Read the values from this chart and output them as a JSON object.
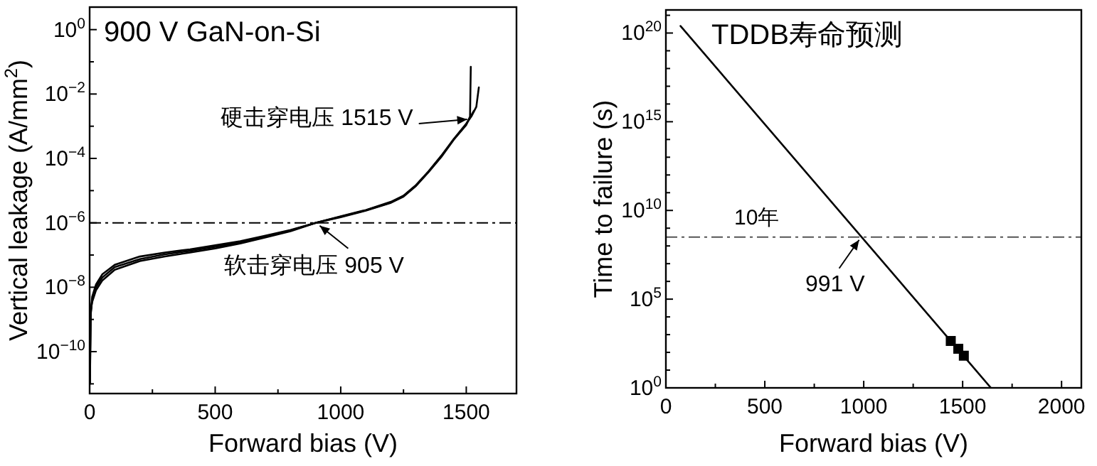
{
  "chart_data": [
    {
      "type": "line",
      "title": "900 V GaN-on-Si",
      "xlabel": "Forward bias (V)",
      "ylabel": "Vertical leakage (A/mm$^{2}$)",
      "log": "y",
      "xlim": [
        0,
        1700
      ],
      "xticks": [
        0,
        500,
        1000,
        1500
      ],
      "ylim": [
        5e-12,
        5
      ],
      "yticks": [
        {
          "value": 1,
          "label": "10$^{0}$"
        },
        {
          "value": 0.1,
          "label": null
        },
        {
          "value": 0.01,
          "label": "10$^{−2}$"
        },
        {
          "value": 0.001,
          "label": null
        },
        {
          "value": 0.0001,
          "label": "10$^{−4}$"
        },
        {
          "value": 1e-05,
          "label": null
        },
        {
          "value": 1e-06,
          "label": "10$^{−6}$"
        },
        {
          "value": 1e-07,
          "label": null
        },
        {
          "value": 1e-08,
          "label": "10$^{−8}$"
        },
        {
          "value": 1e-09,
          "label": null
        },
        {
          "value": 1e-10,
          "label": "10$^{−10}$"
        },
        {
          "value": 1e-11,
          "label": null
        }
      ],
      "line_style": "solid",
      "series": [
        {
          "color": "#000000",
          "x": [
            1,
            3,
            10,
            25,
            50,
            100,
            200,
            300,
            400,
            500,
            600,
            700,
            800,
            900,
            1000,
            1100,
            1200,
            1250,
            1300,
            1350,
            1400,
            1450,
            1500,
            1520,
            1540,
            1550
          ],
          "values": [
            1e-11,
            1e-09,
            5e-09,
            1.2e-08,
            2.5e-08,
            5e-08,
            9e-08,
            1.2e-07,
            1.5e-07,
            2e-07,
            2.7e-07,
            4e-07,
            6e-07,
            1e-06,
            1.6e-06,
            2.5e-06,
            4.5e-06,
            7e-06,
            1.5e-05,
            4e-05,
            0.00012,
            0.0004,
            0.0012,
            0.002,
            0.004,
            0.016
          ]
        },
        {
          "color": "#000000",
          "x": [
            1,
            5,
            10,
            25,
            50,
            100,
            200,
            300,
            400,
            500,
            600,
            700,
            800,
            900,
            1000,
            1100,
            1200,
            1250,
            1300,
            1350,
            1400,
            1450,
            1500,
            1515,
            1518
          ],
          "values": [
            1e-11,
            2e-09,
            3.5e-09,
            8e-09,
            1.6e-08,
            3.5e-08,
            6.5e-08,
            9e-08,
            1.2e-07,
            1.6e-07,
            2.3e-07,
            3.5e-07,
            5.5e-07,
            1e-06,
            1.5e-06,
            2.4e-06,
            4.2e-06,
            6.5e-06,
            1.4e-05,
            3.8e-05,
            0.00011,
            0.00038,
            0.0011,
            0.002,
            0.07
          ]
        },
        {
          "color": "#000000",
          "x": [
            1,
            4,
            10,
            25,
            50,
            100,
            200,
            300,
            400,
            500,
            600,
            700,
            800,
            900,
            1000,
            1100,
            1200,
            1250,
            1300,
            1350,
            1400,
            1450,
            1500,
            1530
          ],
          "values": [
            1e-11,
            1.5e-09,
            4e-09,
            1e-08,
            2e-08,
            4.2e-08,
            7.5e-08,
            1.05e-07,
            1.35e-07,
            1.8e-07,
            2.5e-07,
            3.7e-07,
            5.8e-07,
            1e-06,
            1.55e-06,
            2.45e-06,
            4.3e-06,
            6.8e-06,
            1.45e-05,
            3.9e-05,
            0.000115,
            0.00039,
            0.00115,
            0.003
          ]
        }
      ],
      "ref_lines": [
        {
          "axis": "y",
          "value": 1e-06,
          "label": null,
          "color": "#000000",
          "line_style": "dashed"
        }
      ],
      "annotations": [
        {
          "text": "硬击穿电压 1515 V",
          "x": 1515,
          "y": 0.002
        },
        {
          "text": "软击穿电压 905 V",
          "x": 905,
          "y": 1e-06
        }
      ]
    },
    {
      "type": "line",
      "title": "TDDB寿命预测",
      "xlabel": "Forward bias (V)",
      "ylabel": "Time to failure (s)",
      "log": "y",
      "xlim": [
        0,
        2100
      ],
      "xticks": [
        0,
        500,
        1000,
        1500,
        2000
      ],
      "ylim": [
        1,
        2e+21
      ],
      "yticks": [
        {
          "value": 1,
          "label": "10$^{0}$"
        },
        {
          "value": 10.0,
          "label": null
        },
        {
          "value": 100.0,
          "label": null
        },
        {
          "value": 1000.0,
          "label": null
        },
        {
          "value": 10000.0,
          "label": null
        },
        {
          "value": 100000.0,
          "label": "10$^{5}$"
        },
        {
          "value": 1000000.0,
          "label": null
        },
        {
          "value": 10000000.0,
          "label": null
        },
        {
          "value": 100000000.0,
          "label": null
        },
        {
          "value": 1000000000.0,
          "label": null
        },
        {
          "value": 10000000000.0,
          "label": "10$^{10}$"
        },
        {
          "value": 100000000000.0,
          "label": null
        },
        {
          "value": 1000000000000.0,
          "label": null
        },
        {
          "value": 10000000000000.0,
          "label": null
        },
        {
          "value": 100000000000000.0,
          "label": null
        },
        {
          "value": 1000000000000000.0,
          "label": "10$^{15}$"
        },
        {
          "value": 1e+16,
          "label": null
        },
        {
          "value": 1e+17,
          "label": null
        },
        {
          "value": 1e+18,
          "label": null
        },
        {
          "value": 1e+19,
          "label": null
        },
        {
          "value": 1e+20,
          "label": "10$^{20}$"
        },
        {
          "value": 1e+21,
          "label": null
        }
      ],
      "line_style": "solid",
      "series": [
        {
          "color": "#000000",
          "x": [
            74,
            1643
          ],
          "values": [
            2.5e+20,
            1
          ]
        },
        {
          "type": "scatter",
          "marker": "square",
          "color": "#000000",
          "x": [
            1440,
            1478,
            1506
          ],
          "values": [
            440,
            160,
            65
          ]
        }
      ],
      "ref_lines": [
        {
          "axis": "y",
          "value": 315000000,
          "label": "10年",
          "color": "#555555",
          "line_style": "dashed"
        }
      ],
      "annotations": [
        {
          "text": "991 V",
          "x": 991,
          "y": 315000000
        }
      ]
    }
  ]
}
